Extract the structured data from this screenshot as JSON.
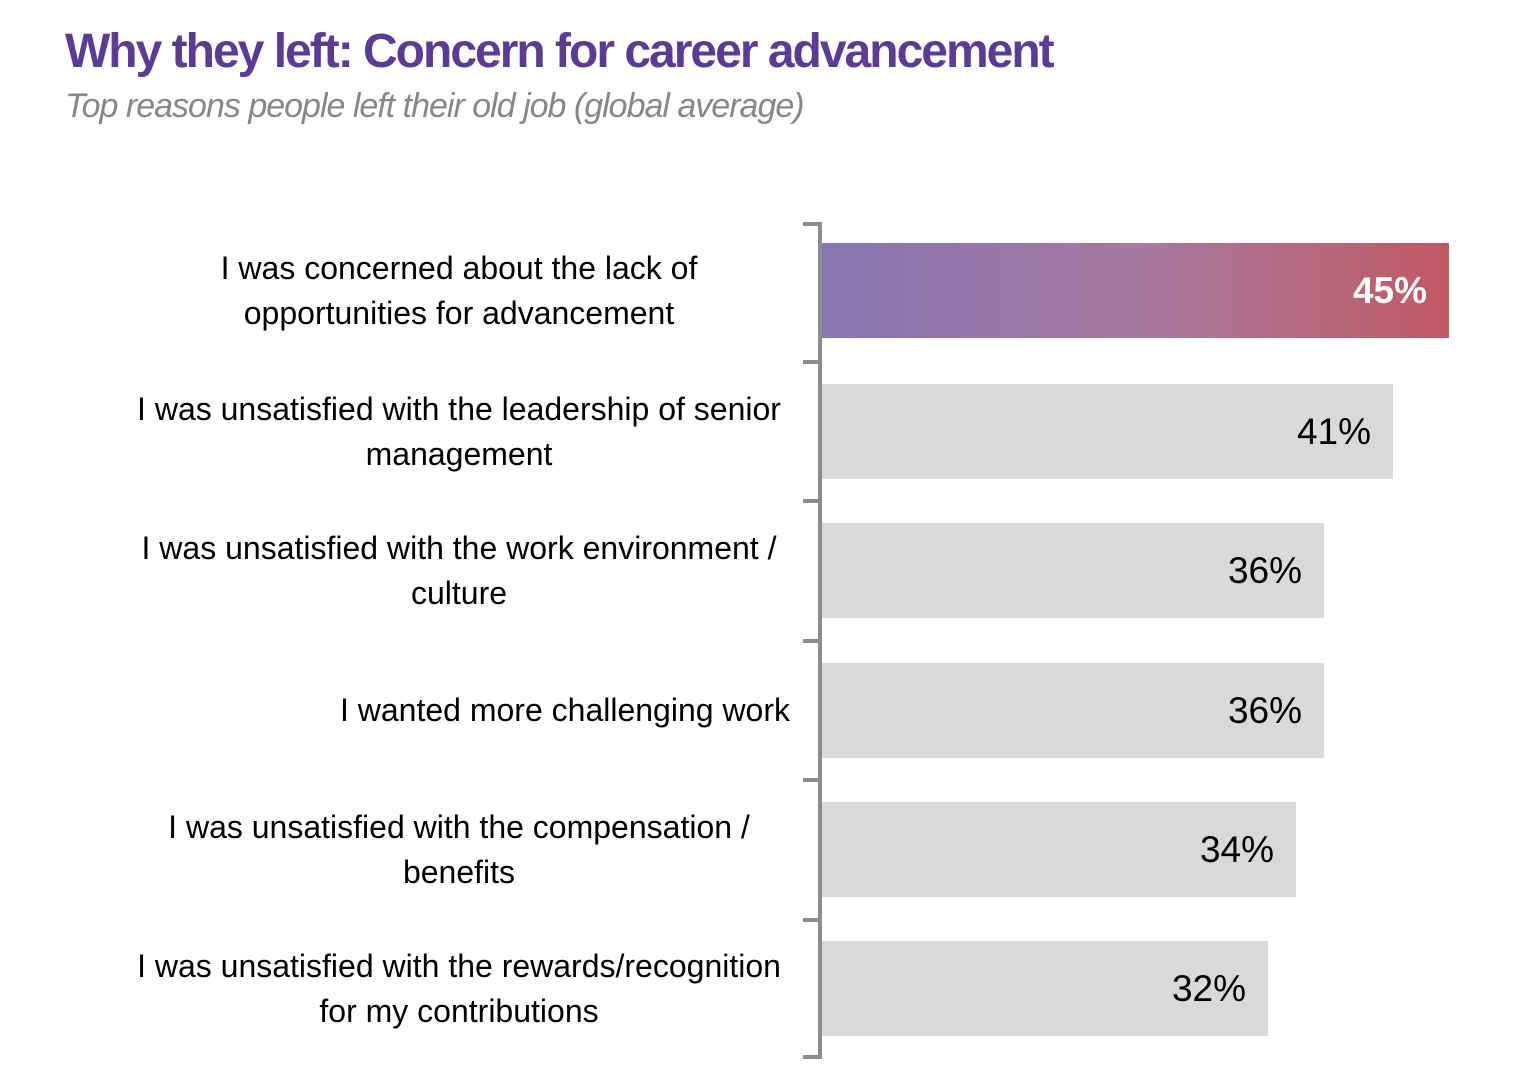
{
  "header": {
    "title": "Why they left: Concern for career advancement",
    "subtitle": "Top reasons people left their old job (global average)"
  },
  "colors": {
    "background": "#ffffff",
    "title": "#5b3b94",
    "subtitle": "#878787",
    "axis": "#8c8c8c",
    "bar_default": "#d9d9d9",
    "bar_highlight_gradient_start": "#8775b1",
    "bar_highlight_gradient_mid": "#a7799f",
    "bar_highlight_gradient_end": "#c15963",
    "value_label_highlight": "#ffffff",
    "value_label_default": "#000000",
    "category_label": "#000000"
  },
  "chart_data": {
    "type": "bar",
    "orientation": "horizontal",
    "title": "Why they left: Concern for career advancement",
    "subtitle": "Top reasons people left their old job (global average)",
    "xlabel": "",
    "ylabel": "",
    "categories": [
      "I was concerned about the lack of opportunities for advancement",
      "I was unsatisfied with the leadership of senior management",
      "I was unsatisfied with the work environment / culture",
      "I wanted more challenging work",
      "I was unsatisfied with the compensation / benefits",
      "I was unsatisfied with the rewards/recognition for my contributions"
    ],
    "values": [
      45,
      41,
      36,
      36,
      34,
      32
    ],
    "value_labels": [
      "45%",
      "41%",
      "36%",
      "36%",
      "34%",
      "32%"
    ],
    "highlighted_index": 0,
    "xlim": [
      0,
      45
    ],
    "grid": false,
    "legend": false,
    "axis_ticks": "category-boundaries"
  }
}
